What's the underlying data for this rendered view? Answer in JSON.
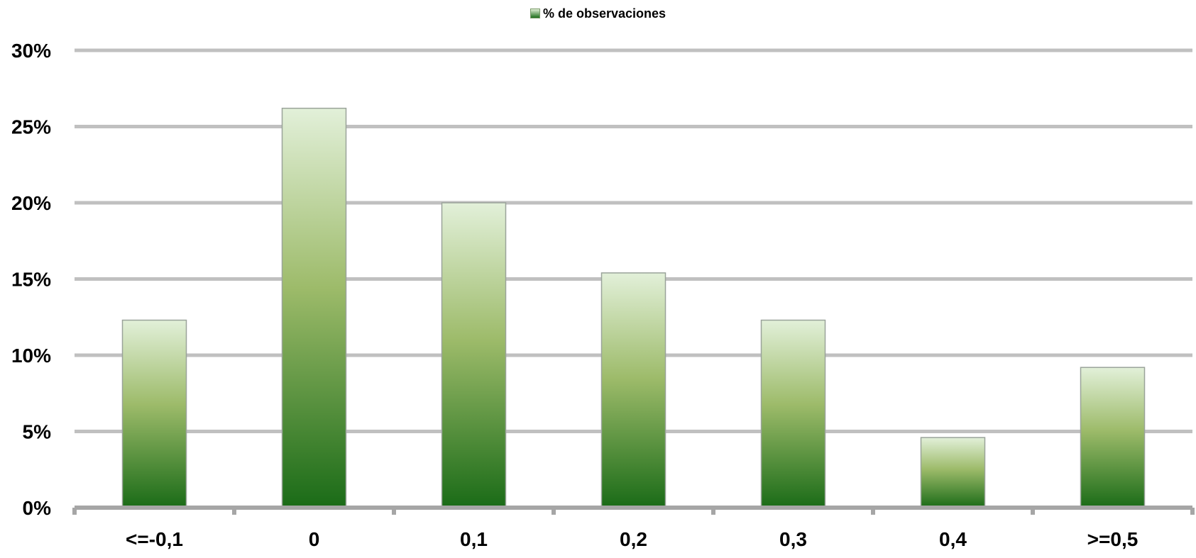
{
  "chart_data": {
    "type": "bar",
    "categories": [
      "<=-0,1",
      "0",
      "0,1",
      "0,2",
      "0,3",
      "0,4",
      ">=0,5"
    ],
    "series": [
      {
        "name": "% de observaciones",
        "values": [
          12.3,
          26.2,
          20.0,
          15.4,
          12.3,
          4.6,
          9.2
        ]
      }
    ],
    "ylim": [
      0,
      30
    ],
    "yticks": [
      "0%",
      "5%",
      "10%",
      "15%",
      "20%",
      "25%",
      "30%"
    ],
    "ytick_values": [
      0,
      5,
      10,
      15,
      20,
      25,
      30
    ],
    "grid": true,
    "legend_position": "top-center",
    "colors": {
      "bar_top": "#e2f0d9",
      "bar_mid": "#9dbb6a",
      "bar_bottom": "#1a6b17",
      "bar_border": "#9aa39a",
      "gridline": "#c0c0c0",
      "axis": "#a6a6a6"
    }
  }
}
